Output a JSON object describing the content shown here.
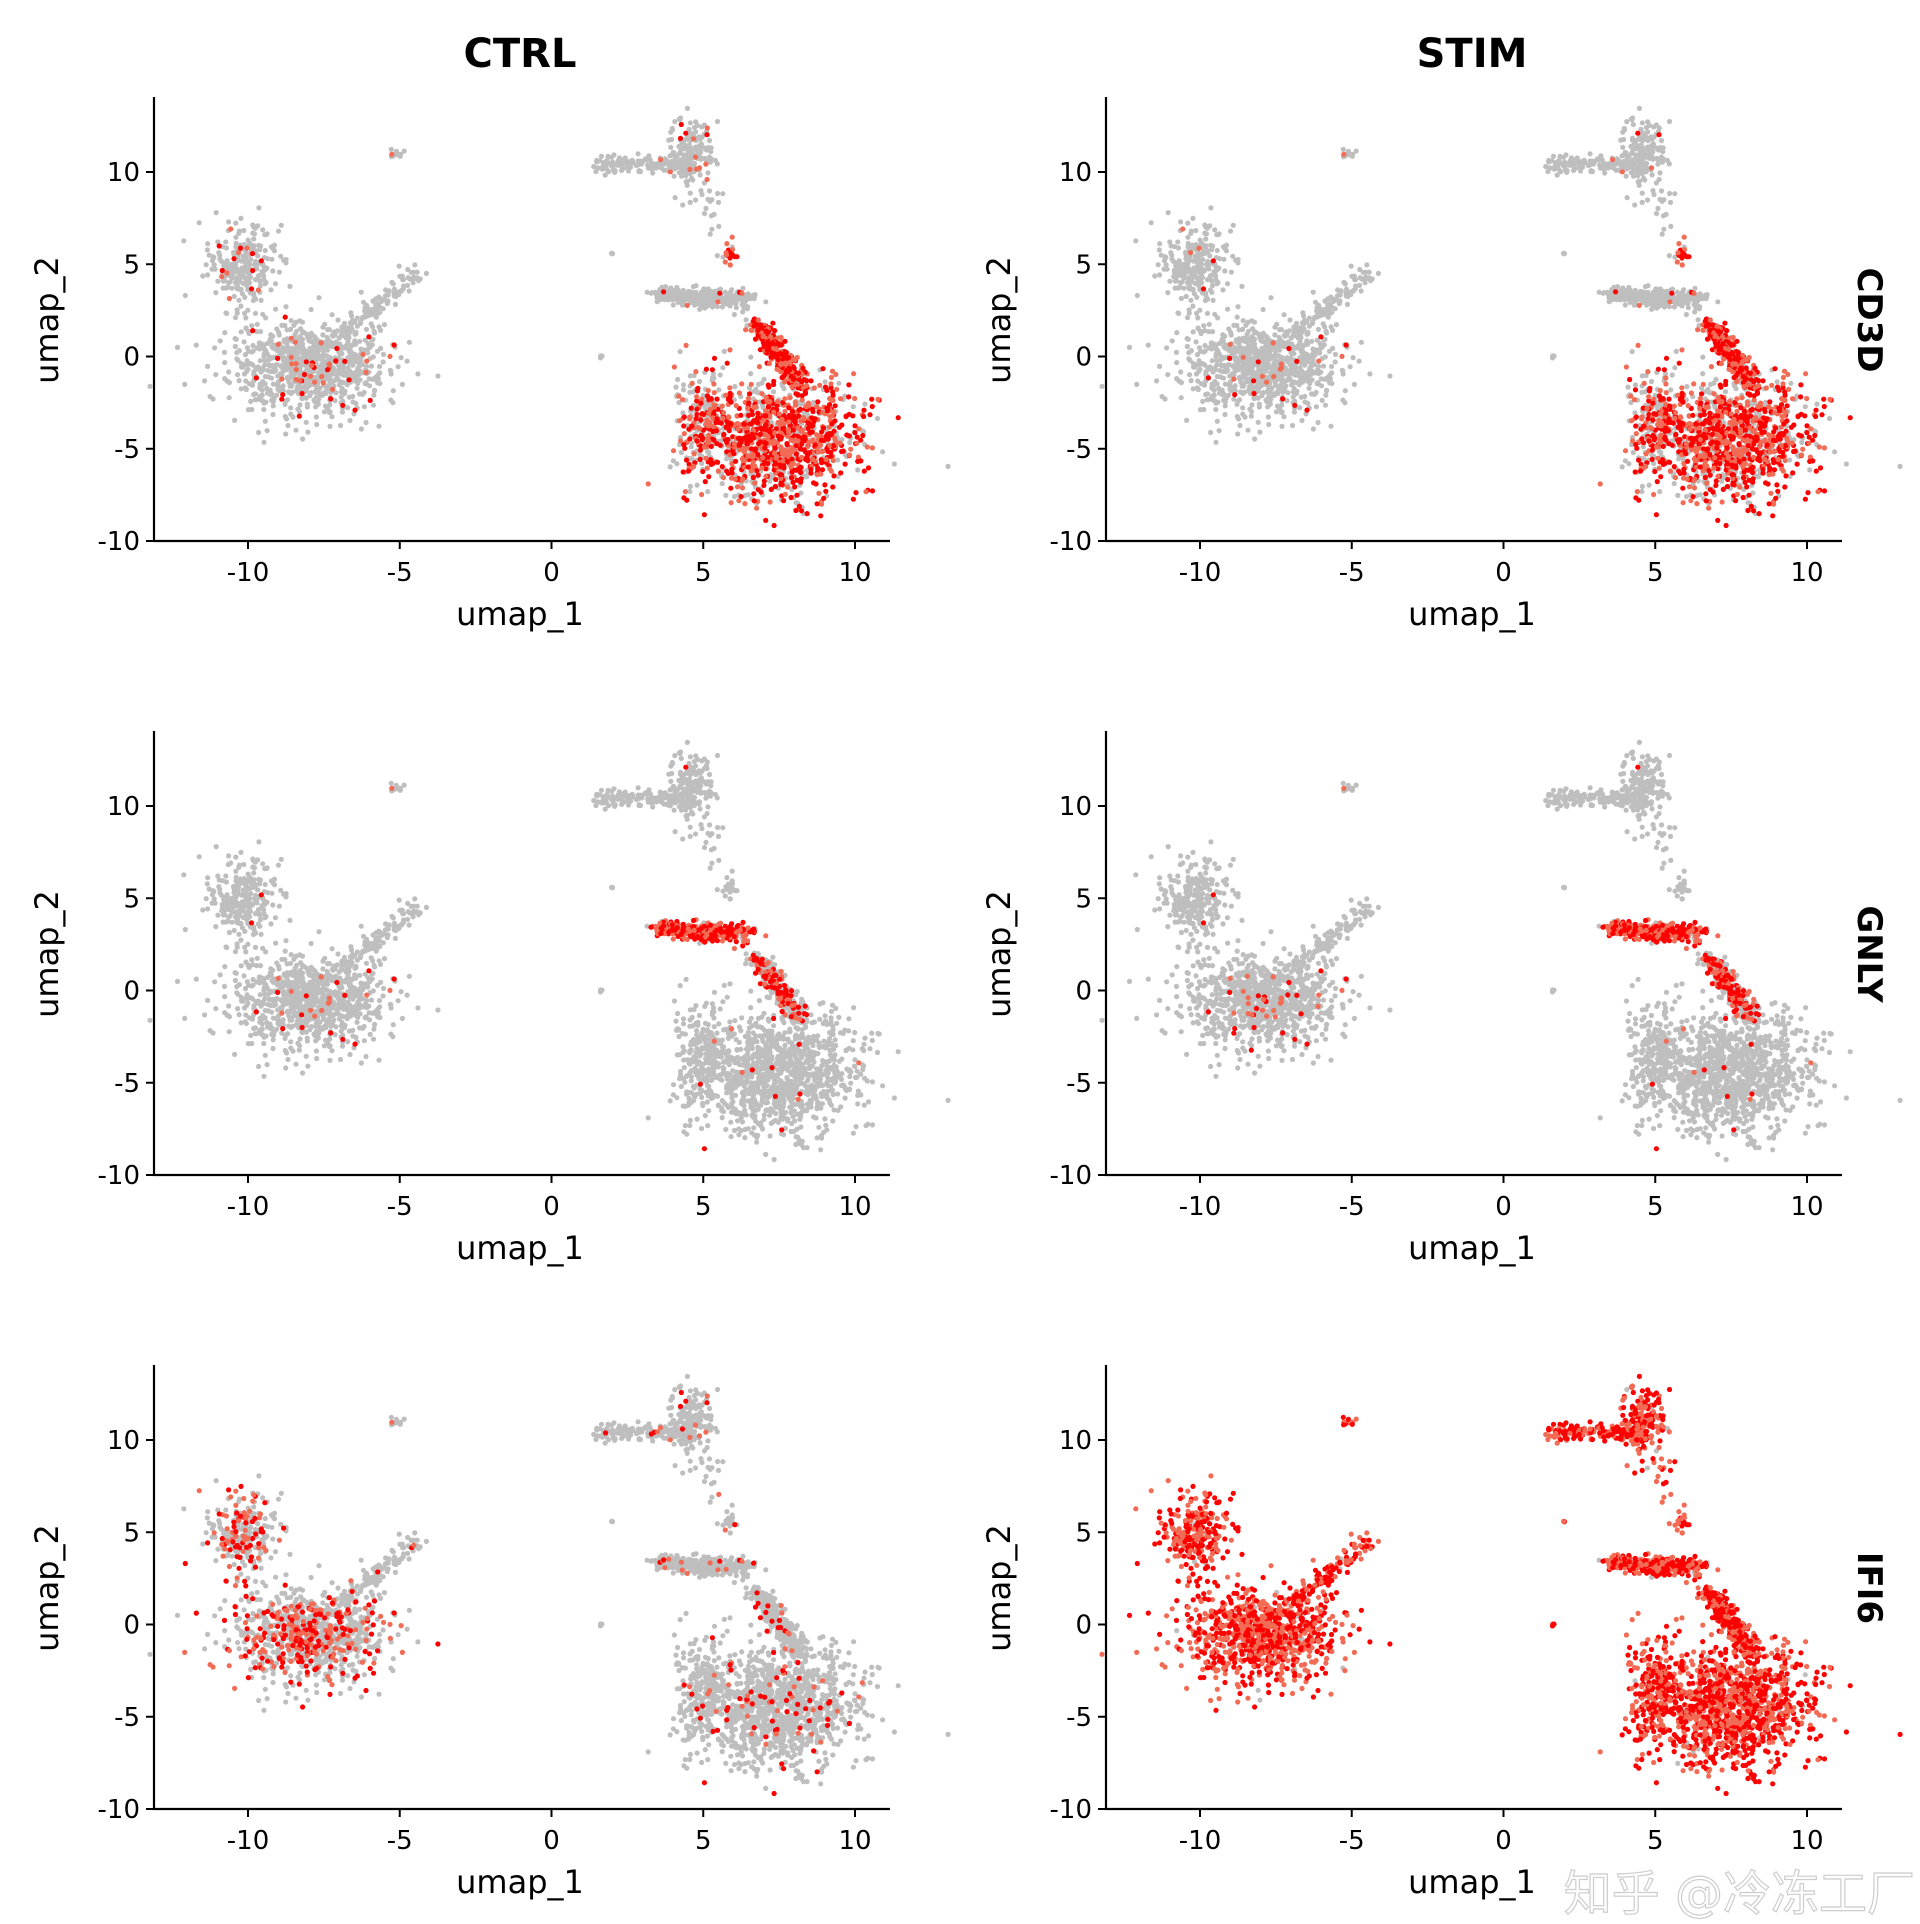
{
  "chart_data": {
    "type": "scatter",
    "layout": "facet grid 3 rows x 2 columns",
    "columns": [
      "CTRL",
      "STIM"
    ],
    "rows": [
      "CD3D",
      "GNLY",
      "IFI6"
    ],
    "xlabel": "umap_1",
    "ylabel": "umap_2",
    "xlim": [
      -13,
      11
    ],
    "ylim": [
      -10,
      14
    ],
    "xticks": [
      "-10",
      "-5",
      "0",
      "5",
      "10"
    ],
    "xtick_values": [
      -10,
      -5,
      0,
      5,
      10
    ],
    "yticks": [
      "-10",
      "-5",
      "0",
      "5",
      "10"
    ],
    "ytick_values": [
      -10,
      -5,
      0,
      5,
      10
    ],
    "grid": false,
    "legend": "none",
    "colors": {
      "low": "#bebebe",
      "mid": "#f26b55",
      "high": "#ff0000"
    },
    "clusters": [
      {
        "id": "left-upper-arm",
        "center": [
          -10.2,
          5.0
        ],
        "spread": [
          0.55,
          1.1
        ],
        "n": 260
      },
      {
        "id": "left-main",
        "center": [
          -8.0,
          -0.6
        ],
        "spread": [
          1.3,
          1.2
        ],
        "n": 900
      },
      {
        "id": "left-stalk",
        "from": [
          -7.0,
          1.0
        ],
        "to": [
          -4.5,
          4.5
        ],
        "n": 120
      },
      {
        "id": "left-island",
        "center": [
          -5.1,
          11.0
        ],
        "spread": [
          0.12,
          0.12
        ],
        "n": 12
      },
      {
        "id": "top-horizontal",
        "from": [
          1.5,
          10.5
        ],
        "to": [
          4.5,
          10.4
        ],
        "n": 150
      },
      {
        "id": "top-vertical",
        "center": [
          4.6,
          11.0
        ],
        "spread": [
          0.35,
          1.0
        ],
        "n": 160
      },
      {
        "id": "top-tail",
        "from": [
          5.2,
          9.0
        ],
        "to": [
          5.4,
          6.8
        ],
        "n": 15
      },
      {
        "id": "small-island-a",
        "center": [
          5.8,
          5.6
        ],
        "spread": [
          0.15,
          0.3
        ],
        "n": 20
      },
      {
        "id": "small-island-b",
        "center": [
          2.0,
          5.6
        ],
        "spread": [
          0.05,
          0.05
        ],
        "n": 4
      },
      {
        "id": "small-island-c",
        "center": [
          1.6,
          0.0
        ],
        "spread": [
          0.05,
          0.05
        ],
        "n": 4
      },
      {
        "id": "nk-band",
        "from": [
          3.5,
          3.3
        ],
        "to": [
          6.6,
          3.1
        ],
        "n": 260
      },
      {
        "id": "t-arc-upper",
        "from": [
          6.8,
          1.8
        ],
        "to": [
          8.2,
          -1.5
        ],
        "n": 300
      },
      {
        "id": "t-main",
        "center": [
          7.5,
          -4.5
        ],
        "spread": [
          1.3,
          1.6
        ],
        "n": 1100
      },
      {
        "id": "t-left",
        "center": [
          5.0,
          -3.5
        ],
        "spread": [
          0.5,
          1.5
        ],
        "n": 220
      }
    ],
    "expression_fraction": {
      "CTRL": {
        "CD3D": {
          "t-arc-upper": 0.85,
          "t-main": 0.7,
          "t-left": 0.4,
          "left-main": 0.05,
          "left-upper-arm": 0.05,
          "small-island-a": 0.7,
          "top-vertical": 0.08,
          "default": 0.02
        },
        "GNLY": {
          "nk-band": 0.9,
          "t-arc-upper": 0.35,
          "left-main": 0.03,
          "default": 0.01
        },
        "IFI6": {
          "left-main": 0.3,
          "left-upper-arm": 0.3,
          "t-main": 0.06,
          "default": 0.05
        }
      },
      "STIM": {
        "CD3D": {
          "t-arc-upper": 0.75,
          "t-main": 0.7,
          "t-left": 0.45,
          "left-main": 0.03,
          "small-island-a": 0.5,
          "default": 0.02
        },
        "GNLY": {
          "nk-band": 0.9,
          "t-arc-upper": 0.45,
          "left-main": 0.04,
          "default": 0.01
        },
        "IFI6": {
          "default": 0.97
        }
      }
    }
  },
  "watermark": "知乎 @冷冻工厂"
}
